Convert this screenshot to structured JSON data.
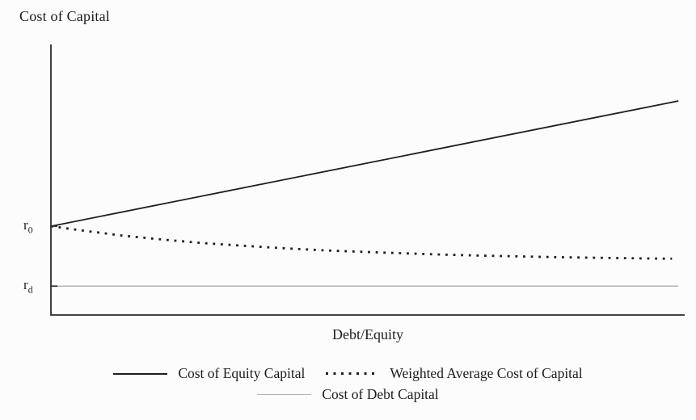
{
  "chart_data": {
    "type": "line",
    "title": "",
    "ylabel": "Cost of Capital",
    "xlabel": "Debt/Equity",
    "x_range_frac": [
      0,
      1
    ],
    "y_range_frac": [
      0,
      1
    ],
    "grid": "off",
    "legend_position": "bottom-center",
    "y_ticks": [
      {
        "base": "r",
        "sub": "0",
        "y_frac": 0.328
      },
      {
        "base": "r",
        "sub": "d",
        "y_frac": 0.107
      }
    ],
    "series": [
      {
        "id": "cost-of-equity",
        "name": "Cost of Equity Capital",
        "style": "solid",
        "color": "#1f1f1f",
        "width": 1.8,
        "points": [
          [
            0,
            0.328
          ],
          [
            0.99,
            0.791
          ]
        ]
      },
      {
        "id": "wacc",
        "name": "Weighted Average Cost of Capital",
        "style": "dotted",
        "color": "#1f1f1f",
        "width": 2.8,
        "dash": "2.8 6.8",
        "points": [
          [
            0,
            0.328
          ],
          [
            0.047,
            0.313
          ],
          [
            0.111,
            0.294
          ],
          [
            0.175,
            0.279
          ],
          [
            0.239,
            0.266
          ],
          [
            0.302,
            0.256
          ],
          [
            0.366,
            0.247
          ],
          [
            0.43,
            0.239
          ],
          [
            0.494,
            0.233
          ],
          [
            0.557,
            0.228
          ],
          [
            0.621,
            0.223
          ],
          [
            0.685,
            0.219
          ],
          [
            0.749,
            0.216
          ],
          [
            0.813,
            0.213
          ],
          [
            0.876,
            0.211
          ],
          [
            0.94,
            0.209
          ],
          [
            0.98,
            0.208
          ]
        ]
      },
      {
        "id": "cost-of-debt",
        "name": "Cost of Debt Capital",
        "style": "solid-thin",
        "color": "#b3b3b3",
        "width": 1.5,
        "points": [
          [
            0,
            0.107
          ],
          [
            0.99,
            0.107
          ]
        ]
      }
    ]
  }
}
